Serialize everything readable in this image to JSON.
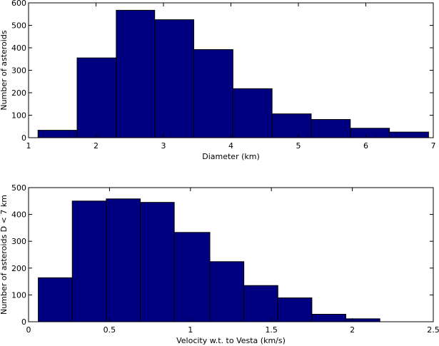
{
  "style": {
    "bar_fill": "#000080",
    "bar_stroke": "#000000",
    "axis_color": "#000000",
    "background": "#ffffff"
  },
  "chart_data": [
    {
      "type": "bar",
      "subtype": "histogram",
      "title": "",
      "xlabel": "Diameter (km)",
      "ylabel": "Number of asteroids",
      "xlim": [
        1,
        7
      ],
      "ylim": [
        0,
        600
      ],
      "xticks": [
        1,
        2,
        3,
        4,
        5,
        6,
        7
      ],
      "yticks": [
        0,
        100,
        200,
        300,
        400,
        500,
        600
      ],
      "xtick_labels": [
        "1",
        "2",
        "3",
        "4",
        "5",
        "6",
        "7"
      ],
      "ytick_labels": [
        "0",
        "100",
        "200",
        "300",
        "400",
        "500",
        "600"
      ],
      "bin_edges": [
        1.14,
        1.72,
        2.3,
        2.87,
        3.45,
        4.03,
        4.61,
        5.19,
        5.77,
        6.35,
        6.93
      ],
      "values": [
        33,
        355,
        567,
        525,
        392,
        218,
        106,
        81,
        42,
        25
      ],
      "grid": false,
      "legend": "none"
    },
    {
      "type": "bar",
      "subtype": "histogram",
      "title": "",
      "xlabel": "Velocity w.t. to Vesta (km/s)",
      "ylabel": "Number of asteroids D < 7 km",
      "xlim": [
        0,
        2.5
      ],
      "ylim": [
        0,
        500
      ],
      "xticks": [
        0,
        0.5,
        1,
        1.5,
        2,
        2.5
      ],
      "yticks": [
        0,
        100,
        200,
        300,
        400,
        500
      ],
      "xtick_labels": [
        "0",
        "0.5",
        "1",
        "1.5",
        "2",
        "2.5"
      ],
      "ytick_labels": [
        "0",
        "100",
        "200",
        "300",
        "400",
        "500"
      ],
      "bin_edges": [
        0.06,
        0.27,
        0.48,
        0.69,
        0.9,
        1.12,
        1.33,
        1.54,
        1.75,
        1.96,
        2.17
      ],
      "values": [
        164,
        450,
        458,
        445,
        333,
        224,
        135,
        89,
        28,
        11
      ],
      "grid": false,
      "legend": "none"
    }
  ]
}
